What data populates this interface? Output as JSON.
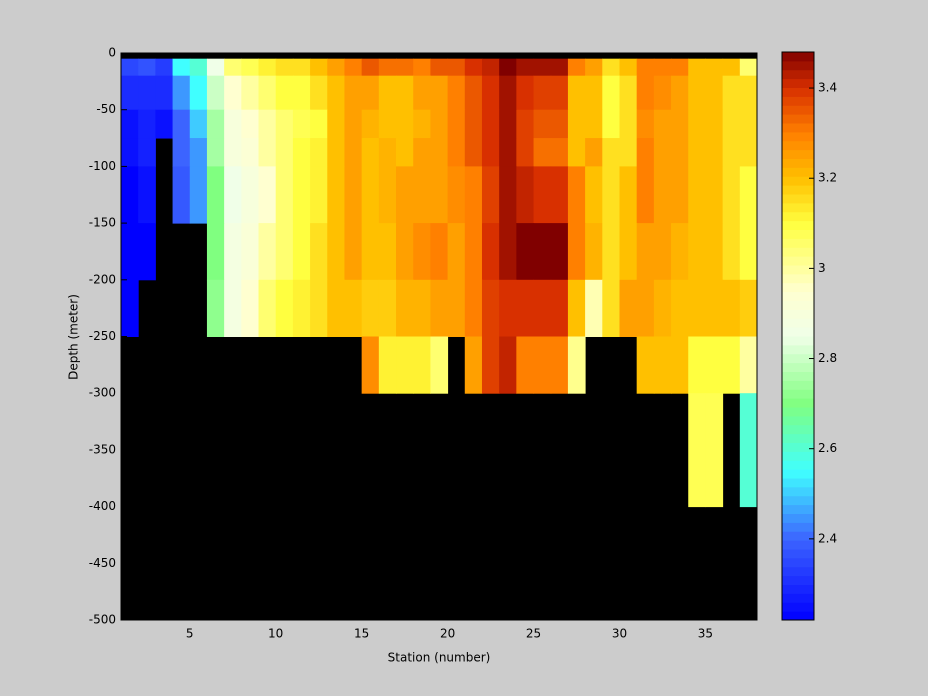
{
  "chart_data": {
    "type": "heatmap",
    "xlabel": "Station (number)",
    "ylabel": "Depth (meter)",
    "x_edges": [
      1,
      2,
      3,
      4,
      5,
      6,
      7,
      8,
      9,
      10,
      11,
      12,
      13,
      14,
      15,
      16,
      17,
      18,
      19,
      20,
      21,
      22,
      23,
      24,
      25,
      26,
      27,
      28,
      29,
      30,
      31,
      32,
      33,
      34,
      35,
      36,
      37,
      38
    ],
    "y_edges": [
      0,
      -5,
      -20,
      -50,
      -75,
      -100,
      -150,
      -200,
      -250,
      -300,
      -400,
      -500
    ],
    "z": [
      [
        null,
        null,
        null,
        null,
        null,
        null,
        null,
        null,
        null,
        null,
        null,
        null,
        null,
        null,
        null,
        null,
        null,
        null,
        null,
        null,
        null,
        null,
        null,
        null,
        null,
        null,
        null,
        null,
        null,
        null,
        null,
        null,
        null,
        null,
        null,
        null,
        null
      ],
      [
        2.35,
        2.37,
        2.33,
        2.55,
        2.6,
        2.85,
        3.05,
        3.08,
        3.12,
        3.15,
        3.15,
        3.2,
        3.25,
        3.3,
        3.35,
        3.32,
        3.32,
        3.3,
        3.35,
        3.35,
        3.4,
        3.42,
        3.48,
        3.45,
        3.45,
        3.45,
        3.3,
        3.25,
        3.15,
        3.2,
        3.3,
        3.3,
        3.3,
        3.2,
        3.2,
        3.2,
        3.05
      ],
      [
        2.3,
        2.3,
        2.3,
        2.45,
        2.55,
        2.8,
        2.95,
        3.0,
        3.05,
        3.1,
        3.1,
        3.15,
        3.2,
        3.25,
        3.25,
        3.2,
        3.2,
        3.25,
        3.25,
        3.3,
        3.35,
        3.4,
        3.45,
        3.4,
        3.38,
        3.38,
        3.2,
        3.2,
        3.1,
        3.15,
        3.3,
        3.28,
        3.25,
        3.2,
        3.2,
        3.15,
        3.15
      ],
      [
        2.25,
        2.28,
        2.25,
        2.4,
        2.5,
        2.75,
        2.9,
        2.95,
        3.0,
        3.05,
        3.08,
        3.1,
        3.2,
        3.25,
        3.22,
        3.2,
        3.2,
        3.22,
        3.25,
        3.3,
        3.35,
        3.4,
        3.45,
        3.38,
        3.35,
        3.35,
        3.2,
        3.2,
        3.1,
        3.15,
        3.28,
        3.25,
        3.25,
        3.2,
        3.2,
        3.15,
        3.15
      ],
      [
        2.25,
        2.28,
        null,
        2.4,
        2.45,
        2.75,
        2.9,
        2.93,
        3.0,
        3.05,
        3.1,
        3.12,
        3.2,
        3.25,
        3.2,
        3.22,
        3.2,
        3.25,
        3.25,
        3.3,
        3.35,
        3.4,
        3.45,
        3.38,
        3.32,
        3.32,
        3.2,
        3.25,
        3.15,
        3.15,
        3.3,
        3.25,
        3.25,
        3.2,
        3.2,
        3.15,
        3.15
      ],
      [
        2.22,
        2.25,
        null,
        2.38,
        2.45,
        2.7,
        2.85,
        2.9,
        2.95,
        3.05,
        3.1,
        3.12,
        3.2,
        3.25,
        3.2,
        3.22,
        3.25,
        3.25,
        3.25,
        3.28,
        3.3,
        3.38,
        3.45,
        3.42,
        3.4,
        3.4,
        3.3,
        3.2,
        3.15,
        3.2,
        3.3,
        3.25,
        3.25,
        3.2,
        3.2,
        3.15,
        3.1
      ],
      [
        2.22,
        2.22,
        null,
        null,
        null,
        2.7,
        2.88,
        2.92,
        3.0,
        3.05,
        3.1,
        3.15,
        3.2,
        3.25,
        3.2,
        3.2,
        3.25,
        3.28,
        3.3,
        3.25,
        3.3,
        3.4,
        3.45,
        3.48,
        3.48,
        3.48,
        3.3,
        3.22,
        3.15,
        3.2,
        3.25,
        3.25,
        3.22,
        3.2,
        3.2,
        3.15,
        3.1
      ],
      [
        2.22,
        null,
        null,
        null,
        null,
        2.72,
        2.88,
        2.95,
        3.05,
        3.1,
        3.12,
        3.15,
        3.2,
        3.2,
        3.18,
        3.18,
        3.22,
        3.22,
        3.25,
        3.25,
        3.3,
        3.38,
        3.4,
        3.4,
        3.4,
        3.4,
        3.2,
        2.98,
        3.15,
        3.25,
        3.25,
        3.22,
        3.2,
        3.2,
        3.2,
        3.2,
        3.18
      ],
      [
        null,
        null,
        null,
        null,
        null,
        null,
        null,
        null,
        null,
        null,
        null,
        null,
        null,
        null,
        3.28,
        3.12,
        3.12,
        3.12,
        3.05,
        null,
        3.25,
        3.38,
        3.42,
        3.3,
        3.3,
        3.3,
        3.02,
        null,
        null,
        null,
        3.2,
        3.2,
        3.2,
        3.1,
        3.1,
        3.1,
        3.0
      ],
      [
        null,
        null,
        null,
        null,
        null,
        null,
        null,
        null,
        null,
        null,
        null,
        null,
        null,
        null,
        null,
        null,
        null,
        null,
        null,
        null,
        null,
        null,
        null,
        null,
        null,
        null,
        null,
        null,
        null,
        null,
        null,
        null,
        null,
        3.08,
        3.08,
        null,
        2.6
      ],
      [
        null,
        null,
        null,
        null,
        null,
        null,
        null,
        null,
        null,
        null,
        null,
        null,
        null,
        null,
        null,
        null,
        null,
        null,
        null,
        null,
        null,
        null,
        null,
        null,
        null,
        null,
        null,
        null,
        null,
        null,
        null,
        null,
        null,
        null,
        null,
        null,
        null
      ]
    ],
    "xlim": [
      1,
      38
    ],
    "xticks": [
      5,
      10,
      15,
      20,
      25,
      30,
      35
    ],
    "ylim": [
      -500,
      0
    ],
    "yticks": [
      0,
      -50,
      -100,
      -150,
      -200,
      -250,
      -300,
      -350,
      -400,
      -450,
      -500
    ],
    "clim": [
      2.22,
      3.48
    ],
    "cticks": [
      2.4,
      2.6,
      2.8,
      3,
      3.2,
      3.4
    ],
    "axes_color": "#000000",
    "colormap": [
      [
        2.22,
        "#0000ff"
      ],
      [
        2.4,
        "#3c64ff"
      ],
      [
        2.55,
        "#40ffff"
      ],
      [
        2.7,
        "#80ff80"
      ],
      [
        2.85,
        "#f0ffe8"
      ],
      [
        2.95,
        "#ffffd0"
      ],
      [
        3.1,
        "#ffff40"
      ],
      [
        3.2,
        "#ffc000"
      ],
      [
        3.3,
        "#ff8000"
      ],
      [
        3.4,
        "#d83000"
      ],
      [
        3.48,
        "#800000"
      ]
    ]
  }
}
